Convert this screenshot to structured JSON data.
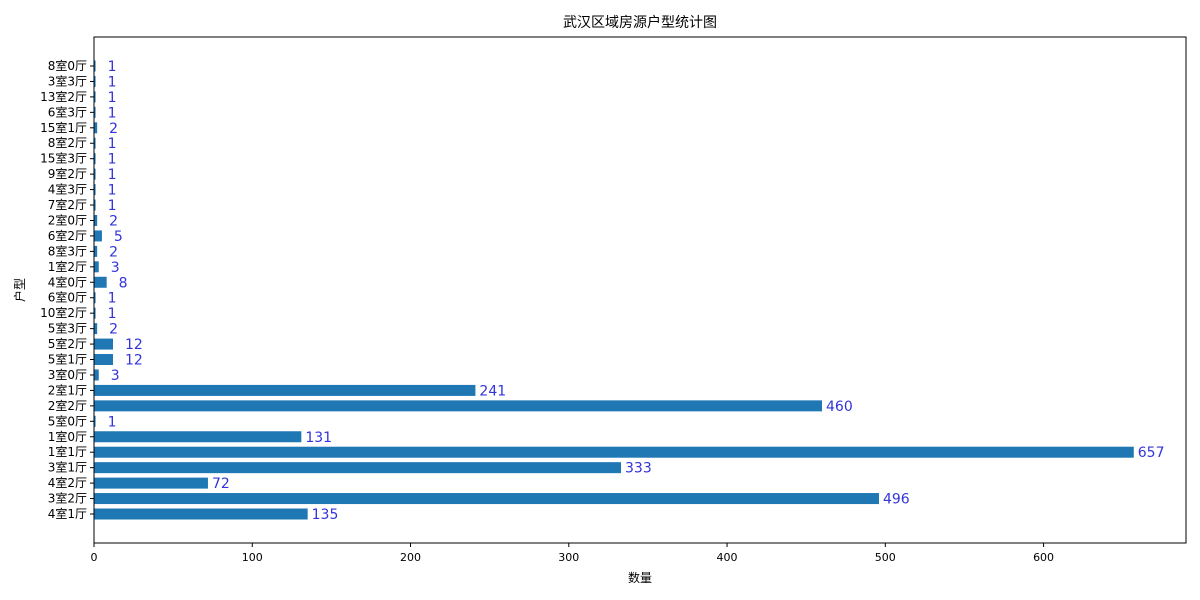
{
  "chart_data": {
    "type": "bar",
    "orientation": "horizontal",
    "title": "武汉区域房源户型统计图",
    "xlabel": "数量",
    "ylabel": "户型",
    "xlim": [
      0,
      690
    ],
    "xticks": [
      "0",
      "100",
      "200",
      "300",
      "400",
      "500",
      "600"
    ],
    "grid": false,
    "categories": [
      "4室1厅",
      "3室2厅",
      "4室2厅",
      "3室1厅",
      "1室1厅",
      "1室0厅",
      "5室0厅",
      "2室2厅",
      "2室1厅",
      "3室0厅",
      "5室1厅",
      "5室2厅",
      "5室3厅",
      "10室2厅",
      "6室0厅",
      "4室0厅",
      "1室2厅",
      "8室3厅",
      "6室2厅",
      "2室0厅",
      "7室2厅",
      "4室3厅",
      "9室2厅",
      "15室3厅",
      "8室2厅",
      "15室1厅",
      "6室3厅",
      "13室2厅",
      "3室3厅",
      "8室0厅"
    ],
    "values": [
      135,
      496,
      72,
      333,
      657,
      131,
      1,
      460,
      241,
      3,
      12,
      12,
      2,
      1,
      1,
      8,
      3,
      2,
      5,
      2,
      1,
      1,
      1,
      1,
      1,
      2,
      1,
      1,
      1,
      1
    ],
    "value_labels": [
      "135",
      "496",
      "72",
      "333",
      "657",
      "131",
      "1",
      "460",
      "241",
      "3",
      "12",
      "12",
      "2",
      "1",
      "1",
      "8",
      "3",
      "2",
      "5",
      "2",
      "1",
      "1",
      "1",
      "1",
      "1",
      "2",
      "1",
      "1",
      "1",
      "1"
    ],
    "colors": {
      "bar": "#1f77b4",
      "data_label": "#3333dd",
      "axis": "#000000"
    }
  }
}
